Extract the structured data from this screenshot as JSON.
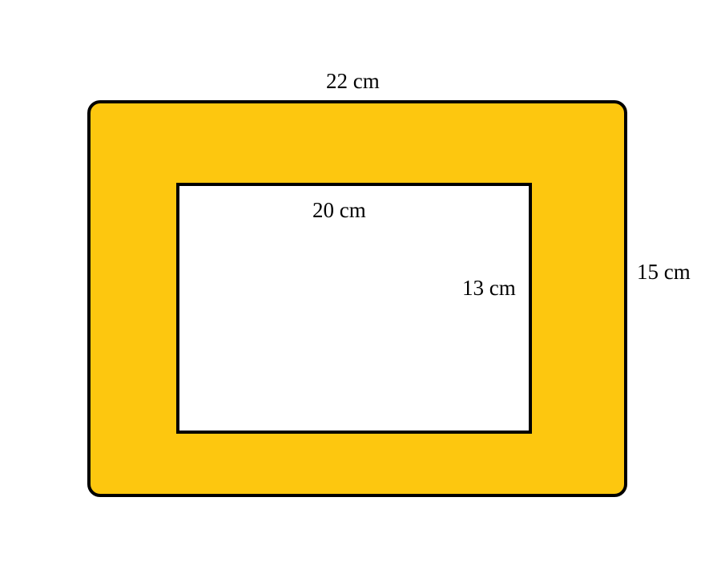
{
  "figure": {
    "frame_color": "#FDC70F",
    "outline_color": "#000000",
    "opening_color": "#FFFFFF",
    "labels": {
      "outer_width": "22 cm",
      "outer_height": "15 cm",
      "inner_width": "20 cm",
      "inner_height": "13 cm"
    }
  }
}
